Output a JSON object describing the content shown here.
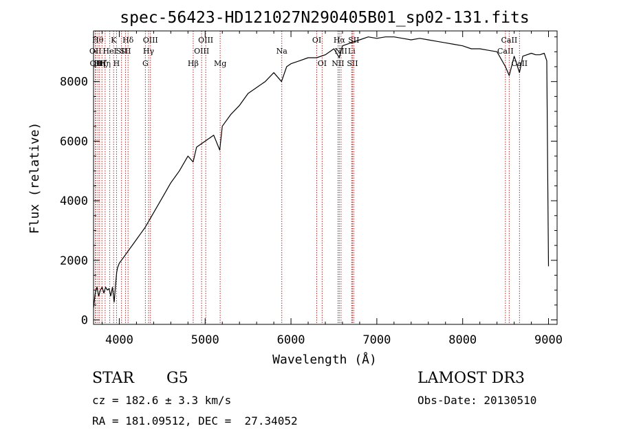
{
  "chart_data": {
    "type": "line",
    "title": "spec-56423-HD121027N290405B01_sp02-131.fits",
    "xlabel": "Wavelength (Å)",
    "ylabel": "Flux (relative)",
    "xlim": [
      3700,
      9100
    ],
    "ylim": [
      -150,
      9700
    ],
    "x_ticks": [
      4000,
      5000,
      6000,
      7000,
      8000,
      9000
    ],
    "y_ticks": [
      0,
      2000,
      4000,
      6000,
      8000
    ],
    "x_tick_labels": [
      "4000",
      "5000",
      "6000",
      "7000",
      "8000",
      "9000"
    ],
    "y_tick_labels": [
      "0",
      "2000",
      "4000",
      "6000",
      "8000"
    ],
    "series": [
      {
        "name": "flux",
        "color": "#000000",
        "x": [
          3700,
          3720,
          3740,
          3760,
          3780,
          3800,
          3820,
          3840,
          3860,
          3880,
          3900,
          3920,
          3940,
          3960,
          3970,
          3980,
          4000,
          4050,
          4100,
          4150,
          4200,
          4250,
          4300,
          4340,
          4400,
          4500,
          4600,
          4700,
          4800,
          4860,
          4900,
          5000,
          5100,
          5170,
          5200,
          5300,
          5400,
          5500,
          5600,
          5700,
          5800,
          5890,
          5950,
          6000,
          6100,
          6200,
          6300,
          6400,
          6500,
          6563,
          6600,
          6700,
          6800,
          6900,
          7000,
          7100,
          7200,
          7300,
          7400,
          7500,
          7600,
          7700,
          7800,
          7900,
          8000,
          8100,
          8200,
          8300,
          8400,
          8498,
          8542,
          8600,
          8662,
          8700,
          8800,
          8850,
          8900,
          8950,
          8980,
          8990,
          9000
        ],
        "values": [
          400,
          900,
          1100,
          800,
          1000,
          1100,
          900,
          1100,
          1000,
          1050,
          800,
          1100,
          600,
          1300,
          1600,
          1750,
          1900,
          2100,
          2300,
          2500,
          2700,
          2900,
          3100,
          3300,
          3600,
          4100,
          4600,
          5000,
          5500,
          5300,
          5800,
          6000,
          6200,
          5700,
          6500,
          6900,
          7200,
          7600,
          7800,
          8000,
          8300,
          8000,
          8500,
          8600,
          8700,
          8800,
          8800,
          8900,
          9100,
          8800,
          9200,
          9300,
          9400,
          9500,
          9450,
          9500,
          9500,
          9450,
          9400,
          9450,
          9400,
          9350,
          9300,
          9250,
          9200,
          9100,
          9100,
          9050,
          9000,
          8500,
          8200,
          8850,
          8300,
          8850,
          8950,
          8900,
          8900,
          8950,
          8700,
          5000,
          1800
        ]
      }
    ],
    "lines": [
      {
        "wave": 3722,
        "top": "OII",
        "row": 2
      },
      {
        "wave": 3727,
        "top": "OII",
        "row": 3
      },
      {
        "wave": 3750,
        "top": "Hθ",
        "row": 1
      },
      {
        "wave": 3770,
        "top": "Hη",
        "row": 3
      },
      {
        "wave": 3798,
        "top": "Hζ",
        "row": 3
      },
      {
        "wave": 3835,
        "top": "Hη",
        "row": 3
      },
      {
        "wave": 3889,
        "top": "HeI",
        "row": 2
      },
      {
        "wave": 3934,
        "top": "K",
        "row": 1
      },
      {
        "wave": 3968,
        "top": "H",
        "row": 3
      },
      {
        "wave": 4026,
        "top": "SII",
        "row": 2
      },
      {
        "wave": 4102,
        "top": "Hδ",
        "row": 1
      },
      {
        "wave": 4072,
        "top": "SII",
        "row": 2
      },
      {
        "wave": 4304,
        "top": "G",
        "row": 3
      },
      {
        "wave": 4341,
        "top": "Hγ",
        "row": 2
      },
      {
        "wave": 4363,
        "top": "OIII",
        "row": 1
      },
      {
        "wave": 4861,
        "top": "Hβ",
        "row": 3
      },
      {
        "wave": 4959,
        "top": "OIII",
        "row": 2
      },
      {
        "wave": 5007,
        "top": "OIII",
        "row": 1
      },
      {
        "wave": 5175,
        "top": "Mg",
        "row": 3
      },
      {
        "wave": 5893,
        "top": "Na",
        "row": 2
      },
      {
        "wave": 6300,
        "top": "OI",
        "row": 1
      },
      {
        "wave": 6363,
        "top": "OI",
        "row": 3
      },
      {
        "wave": 6548,
        "top": "NII",
        "row": 3
      },
      {
        "wave": 6563,
        "top": "Hα",
        "row": 1
      },
      {
        "wave": 6583,
        "top": "NII",
        "row": 2
      },
      {
        "wave": 6707,
        "top": "Li",
        "row": 2
      },
      {
        "wave": 6716,
        "top": "SII",
        "row": 3
      },
      {
        "wave": 6731,
        "top": "SII",
        "row": 1
      },
      {
        "wave": 8498,
        "top": "CaII",
        "row": 2
      },
      {
        "wave": 8542,
        "top": "CaII",
        "row": 1
      },
      {
        "wave": 8662,
        "top": "CaII",
        "row": 3
      }
    ]
  },
  "footer": {
    "class_label": "STAR",
    "subclass": "G5",
    "survey": "LAMOST DR3",
    "cz": "cz = 182.6 ± 3.3 km/s",
    "obs_date": "Obs-Date: 20130510",
    "coords": "RA = 181.09512, DEC =  27.34052"
  }
}
